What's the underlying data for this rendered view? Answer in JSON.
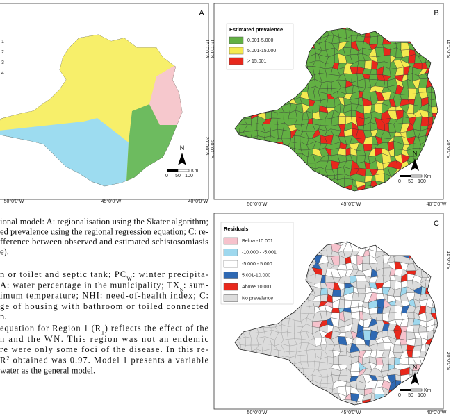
{
  "panels": [
    {
      "label": "A",
      "legend": [
        "1",
        "2",
        "3",
        "4"
      ],
      "lat_labels": [
        "15°0'0\"S",
        "20°0'0\"S"
      ],
      "lon_labels": [
        "50°0'0\"W",
        "45°0'0\"W",
        "40°0'0\"W"
      ],
      "north": "N",
      "scale_unit": "Km",
      "scale_ticks": [
        "0",
        "50",
        "100"
      ]
    },
    {
      "label": "B",
      "legend_title": "Estimated prevalence",
      "legend": [
        "0.001-5.000",
        "5.001-15.000",
        "> 15.001"
      ],
      "lat_labels": [
        "15°0'0\"S",
        "20°0'0\"S"
      ],
      "lon_labels": [
        "50°0'0\"W",
        "45°0'0\"W",
        "40°0'0\"W"
      ],
      "north": "N",
      "scale_unit": "Km",
      "scale_ticks": [
        "0",
        "50",
        "100"
      ]
    },
    {
      "label": "C",
      "legend_title": "Residuals",
      "legend": [
        "Below -10.001",
        "-10.000 - -5.001",
        "-5.000 - 5.000",
        "5.001-10.000",
        "Above 10.001",
        "No prevalence"
      ],
      "lat_labels": [
        "15°0'0\"S",
        "20°0'0\"S"
      ],
      "lon_labels": [
        "50°0'0\"W",
        "45°0'0\"W",
        "40°0'0\"W"
      ],
      "north": "N",
      "scale_unit": "Km",
      "scale_ticks": [
        "0",
        "50",
        "100"
      ]
    }
  ],
  "caption": [
    "ional model: A: regionalisation using the Skater algorithm;",
    "ed prevalence using the regional regression equation; C: re-",
    "fference between observed and estimated schistosomiasis",
    "e)."
  ],
  "body": [
    [
      "n or toilet and septic tank; PC",
      {
        "sub": "W"
      },
      ": winter precipita-"
    ],
    [
      "A: water percentage in the municipality; TX",
      {
        "sub": "S"
      },
      ": sum-"
    ],
    [
      "imum temperature; NHI: need-of-health index; C:"
    ],
    [
      "ge of housing with bathroom or toiled connected"
    ],
    [
      "n."
    ],
    [
      "equation for Region 1 (R",
      {
        "sub": "1"
      },
      ") reflects the effect of the"
    ],
    [
      "n and the WN. This region was not an endemic"
    ],
    [
      "re were only some foci of the disease. In this re-"
    ],
    [
      "R",
      {
        "sup": "2"
      },
      " obtained was 0.97. Model 1 presents a variable"
    ],
    [
      "water as the general model."
    ]
  ]
}
